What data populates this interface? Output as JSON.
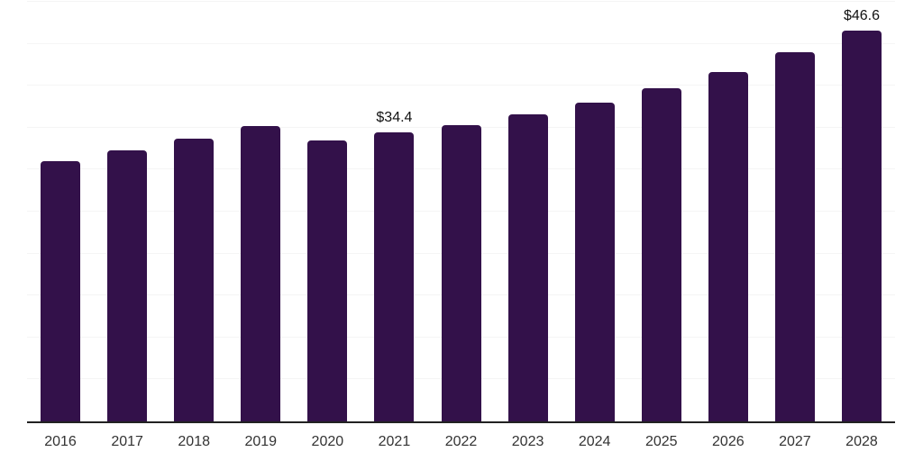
{
  "chart_data": {
    "type": "bar",
    "title": "",
    "xlabel": "",
    "ylabel": "",
    "categories": [
      "2016",
      "2017",
      "2018",
      "2019",
      "2020",
      "2021",
      "2022",
      "2023",
      "2024",
      "2025",
      "2026",
      "2027",
      "2028"
    ],
    "values": [
      31.0,
      32.3,
      33.7,
      35.2,
      33.5,
      34.4,
      35.3,
      36.6,
      38.0,
      39.7,
      41.6,
      44.0,
      46.6
    ],
    "point_labels": [
      "",
      "",
      "",
      "",
      "",
      "$34.4",
      "",
      "",
      "",
      "",
      "",
      "",
      "$46.6"
    ],
    "ylim": [
      0,
      50
    ],
    "y_gridline_interval": 5,
    "grid": "horizontal",
    "legend": "none",
    "colors": {
      "bar": "#33114A",
      "axis_line": "#222222",
      "gridline": "#f5f5f5",
      "tick_label": "#333333",
      "point_label": "#111111",
      "background": "#ffffff"
    }
  }
}
